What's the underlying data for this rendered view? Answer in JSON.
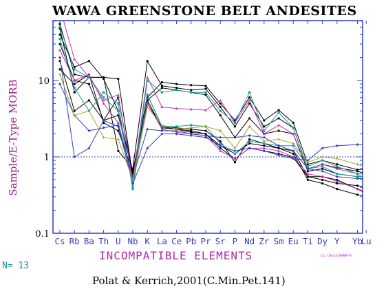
{
  "chart_data": {
    "type": "line",
    "title": "WAWA GREENSTONE BELT ANDESITES",
    "ylabel": "Sample/E-Type MORB",
    "xlabel": "INCOMPATIBLE ELEMENTS",
    "yscale": "log",
    "ylim": [
      0.1,
      60
    ],
    "yticks": [
      "0.1",
      "1",
      "10"
    ],
    "reference_line": 1,
    "grid": false,
    "categories": [
      "Cs",
      "Rb",
      "Ba",
      "Th",
      "U",
      "Nb",
      "K",
      "La",
      "Ce",
      "Pb",
      "Pr",
      "Sr",
      "P",
      "Nd",
      "Zr",
      "Sm",
      "Eu",
      "Ti",
      "Dy",
      "Y",
      "Yb",
      "Lu"
    ],
    "x_positions": [
      0,
      1,
      2,
      3,
      4,
      5,
      6,
      7,
      8,
      9,
      10,
      11,
      12,
      13,
      14,
      15,
      16,
      17,
      18,
      19,
      20.4,
      21
    ],
    "series": [
      {
        "color": "#000000",
        "marker": "circle",
        "values": [
          55,
          12,
          11,
          11,
          10.5,
          0.55,
          6,
          9.5,
          9,
          8.7,
          8.5,
          5,
          3,
          6,
          3,
          4.1,
          2.8,
          0.8,
          0.9,
          0.8,
          0.68,
          0.7
        ]
      },
      {
        "color": "#000000",
        "marker": "circle",
        "values": [
          48,
          7,
          11,
          11,
          1.2,
          0.7,
          18,
          8.5,
          8,
          7.5,
          7.8,
          4.5,
          2.5,
          5,
          2.5,
          3.2,
          2.4,
          0.7,
          0.8,
          0.72,
          0.65,
          0.6
        ]
      },
      {
        "color": "#000000",
        "marker": "circle",
        "values": [
          40,
          15,
          18,
          10.5,
          4,
          0.6,
          5.5,
          8,
          7.5,
          7,
          6.5,
          3.5,
          1.8,
          3.2,
          2,
          2.2,
          2,
          0.65,
          0.7,
          0.6,
          0.55,
          0.55
        ]
      },
      {
        "color": "#000000",
        "marker": "circle",
        "values": [
          18,
          4,
          5.5,
          3,
          3.5,
          0.65,
          5,
          2.5,
          2.3,
          2.2,
          2,
          1.4,
          1.1,
          1.5,
          1.4,
          1.3,
          1.1,
          0.5,
          0.45,
          0.38,
          0.32,
          0.3
        ]
      },
      {
        "color": "#000000",
        "marker": "circle",
        "values": [
          30,
          10,
          9,
          3,
          6,
          0.6,
          6.5,
          2.5,
          2.4,
          2.3,
          2.2,
          1.6,
          0.85,
          1.7,
          1.5,
          1.3,
          1.2,
          0.55,
          0.5,
          0.45,
          0.42,
          0.4
        ]
      },
      {
        "color": "#000000",
        "marker": "circle",
        "values": [
          14,
          9,
          12,
          2.8,
          2.2,
          0.65,
          5.5,
          2.4,
          2.3,
          2.1,
          2.0,
          1.3,
          0.95,
          1.3,
          1.2,
          1.1,
          0.98,
          0.55,
          0.55,
          0.5,
          0.38,
          0.33
        ]
      },
      {
        "color": "#c030c0",
        "marker": "triangle",
        "values": [
          90,
          19,
          11,
          5.5,
          6.5,
          0.5,
          11,
          4.5,
          4.3,
          4.2,
          4.1,
          5.5,
          2.8,
          5.5,
          2,
          2.6,
          2,
          0.7,
          0.8,
          0.7,
          0.6,
          0.5
        ]
      },
      {
        "color": "#c030c0",
        "marker": "triangle",
        "values": [
          25,
          10,
          12,
          5,
          2.8,
          0.5,
          5,
          2.3,
          2.1,
          2,
          1.9,
          1.2,
          0.95,
          1.3,
          1.3,
          1.2,
          1.0,
          0.6,
          0.55,
          0.48,
          0.38,
          0.35
        ]
      },
      {
        "color": "#1f9a9a",
        "marker": "square",
        "values": [
          50,
          14,
          11,
          6,
          4,
          0.4,
          10,
          7,
          7.5,
          7,
          7,
          4,
          2.8,
          7,
          2.2,
          3.8,
          2.4,
          0.7,
          0.75,
          0.6,
          0.55,
          0.56
        ]
      },
      {
        "color": "#1f9a9a",
        "marker": "square",
        "values": [
          35,
          8,
          4,
          7,
          5,
          0.38,
          6.5,
          2.5,
          2.5,
          2.6,
          2.5,
          1.5,
          1.1,
          1.6,
          1.5,
          1.4,
          1.4,
          0.75,
          0.9,
          0.75,
          0.6,
          0.6
        ]
      },
      {
        "color": "#2a3fbf",
        "marker": "diamond",
        "values": [
          20,
          1,
          1.3,
          3,
          2.5,
          0.45,
          1.3,
          2,
          2,
          1.9,
          1.8,
          1.4,
          1.2,
          1.3,
          1.2,
          1.05,
          0.95,
          0.9,
          1.3,
          1.4,
          1.45,
          1.45
        ]
      },
      {
        "color": "#2a3fbf",
        "marker": "diamond",
        "values": [
          9,
          3.5,
          2.2,
          2.4,
          2.6,
          0.55,
          2.3,
          2.2,
          2.2,
          2,
          1.9,
          1.8,
          1.8,
          1.9,
          1.8,
          1.4,
          1.2,
          0.7,
          0.65,
          0.55,
          0.52,
          0.52
        ]
      },
      {
        "color": "#a6a62a",
        "marker": "plus",
        "values": [
          12,
          3.5,
          4,
          1.8,
          1.7,
          0.5,
          4.5,
          2.6,
          2.3,
          2.4,
          2.5,
          2.2,
          1.3,
          2.5,
          1.6,
          1.7,
          1.5,
          0.85,
          1.0,
          0.95,
          0.8,
          0.72
        ]
      }
    ],
    "note": "Cs:\\Data\\WAWA-K",
    "n_label": "N= 13",
    "credit": "Polat & Kerrich,2001(C.Min.Pet.141)"
  }
}
